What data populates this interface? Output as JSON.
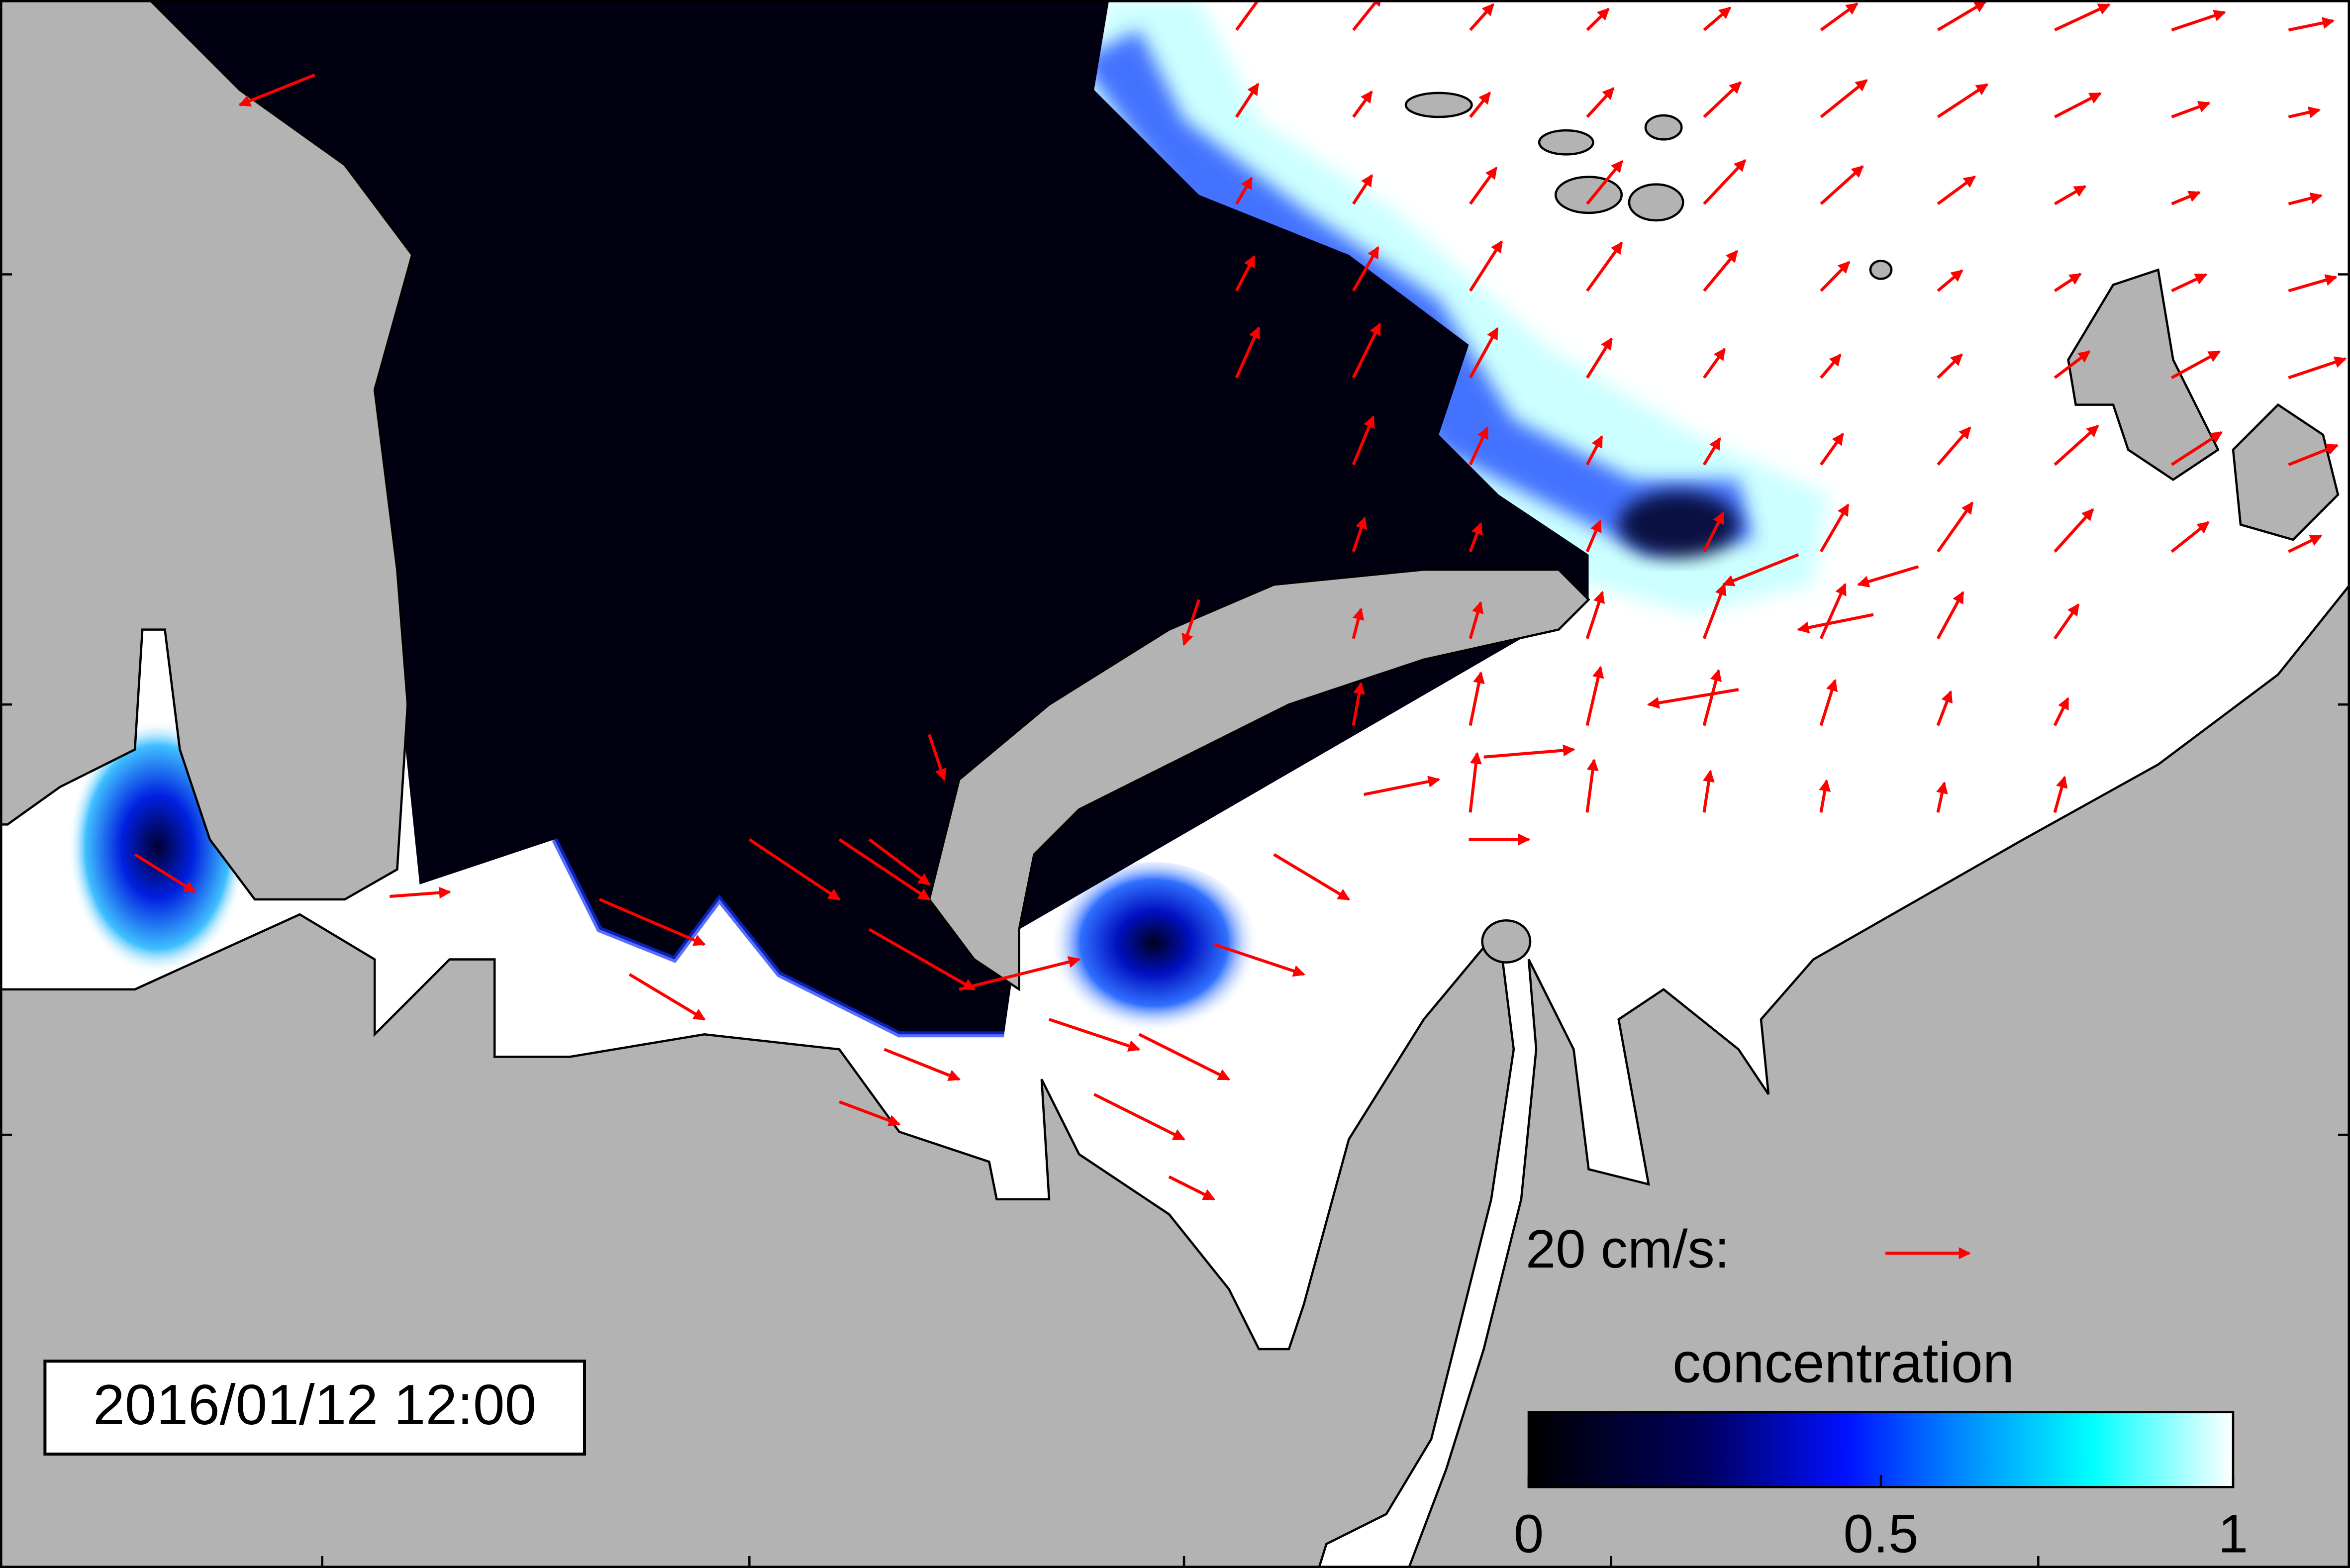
{
  "timestamp": "2016/01/12 12:00",
  "reference_vector": {
    "label": "20 cm/s:"
  },
  "colorbar": {
    "label": "concentration",
    "lim": [
      0,
      1
    ],
    "ticks": [
      0,
      0.5,
      1
    ]
  }
}
